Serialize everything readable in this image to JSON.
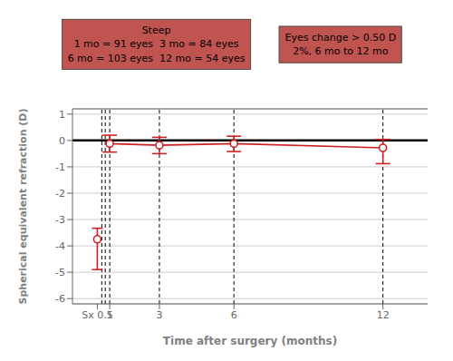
{
  "chart_data": {
    "type": "line",
    "annotations": [
      {
        "text": [
          "Steep",
          "1 mo = 91 eyes  3 mo = 84 eyes",
          "6 mo = 103 eyes  12 mo = 54 eyes"
        ],
        "color": "#c05450"
      },
      {
        "text": [
          "Eyes change > 0.50 D",
          "2%, 6 mo to 12 mo"
        ],
        "color": "#c05450"
      }
    ],
    "xlabel": "Time after surgery (months)",
    "ylabel": "Spherical equivalent refraction (D)",
    "series": [
      {
        "type": "scatter",
        "marker": "circle",
        "color": "#cc2222",
        "x": [
          0.5
        ],
        "values": [
          -3.75
        ],
        "error_upper": [
          0.42
        ],
        "error_lower": [
          1.15
        ]
      },
      {
        "type": "line",
        "marker": "circle",
        "color": "#cc2222",
        "x": [
          1,
          3,
          6,
          12
        ],
        "values": [
          -0.12,
          -0.18,
          -0.12,
          -0.28
        ],
        "error_upper": [
          0.32,
          0.3,
          0.28,
          0.32
        ],
        "error_lower": [
          0.32,
          0.32,
          0.3,
          0.6
        ]
      }
    ],
    "xlim": [
      -0.5,
      13.8
    ],
    "xticks": [
      {
        "value": 0.5,
        "label": "Sx 0.5"
      },
      1,
      3,
      6,
      12
    ],
    "x2ticks": [
      1,
      3,
      6,
      12
    ],
    "ylim": [
      -6.2,
      1.2
    ],
    "yticks": [
      1,
      0,
      -1,
      -2,
      -3,
      -4,
      -5,
      -6
    ],
    "grid": true,
    "reference_lines": [
      {
        "y": 0,
        "color": "#000000"
      },
      {
        "x": 0.68,
        "color": "#000000",
        "line_style": "dashed"
      },
      {
        "x": 0.82,
        "color": "#000000",
        "line_style": "dashed"
      },
      {
        "x": 1.0,
        "color": "#000000",
        "line_style": "dashed"
      },
      {
        "x": 3.0,
        "color": "#000000",
        "line_style": "dashed"
      },
      {
        "x": 6.0,
        "color": "#000000",
        "line_style": "dashed"
      },
      {
        "x": 12.0,
        "color": "#000000",
        "line_style": "dashed"
      }
    ]
  }
}
